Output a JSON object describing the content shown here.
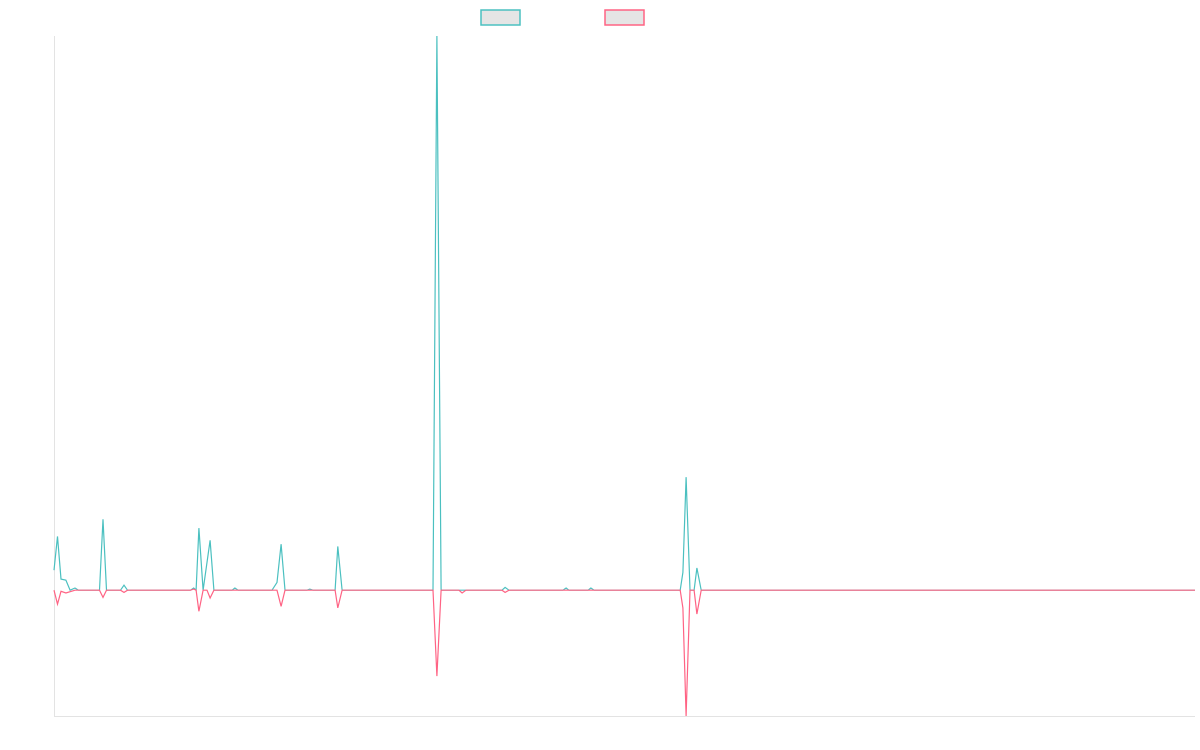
{
  "chart_data": {
    "type": "line",
    "title": "",
    "xlabel": "",
    "ylabel": "",
    "xlim": [
      0,
      326
    ],
    "ylim": [
      -22.7,
      100
    ],
    "grid": false,
    "legend_position": "top-center",
    "series": [
      {
        "name": "",
        "color": "#4bc0c0",
        "points": [
          [
            0,
            3.6
          ],
          [
            1,
            9.7
          ],
          [
            2,
            2
          ],
          [
            3.4,
            1.8
          ],
          [
            4.6,
            0
          ],
          [
            6,
            0.4
          ],
          [
            7,
            0
          ],
          [
            13,
            0
          ],
          [
            14,
            12.8
          ],
          [
            15,
            0
          ],
          [
            19,
            0
          ],
          [
            20,
            0.9
          ],
          [
            21,
            0
          ],
          [
            39,
            0
          ],
          [
            39.9,
            0.4
          ],
          [
            40.6,
            0
          ],
          [
            41.4,
            11.2
          ],
          [
            42.6,
            0
          ],
          [
            44.6,
            9
          ],
          [
            45.7,
            0
          ],
          [
            50.9,
            0
          ],
          [
            51.7,
            0.4
          ],
          [
            52.6,
            0
          ],
          [
            62.3,
            0
          ],
          [
            63.7,
            1.4
          ],
          [
            64.9,
            8.3
          ],
          [
            66,
            0
          ],
          [
            72.3,
            0
          ],
          [
            73.1,
            0.2
          ],
          [
            74,
            0
          ],
          [
            80.3,
            0
          ],
          [
            81.1,
            7.9
          ],
          [
            82.3,
            0
          ],
          [
            108.3,
            0
          ],
          [
            109.4,
            100
          ],
          [
            110.6,
            0
          ],
          [
            128,
            0
          ],
          [
            128.9,
            0.5
          ],
          [
            130,
            0
          ],
          [
            145.4,
            0
          ],
          [
            146.3,
            0.4
          ],
          [
            147.1,
            0
          ],
          [
            152.6,
            0
          ],
          [
            153.4,
            0.4
          ],
          [
            154.3,
            0
          ],
          [
            178.9,
            0
          ],
          [
            179.7,
            3.2
          ],
          [
            180.6,
            20.4
          ],
          [
            181.7,
            0
          ],
          [
            182.9,
            0
          ],
          [
            183.7,
            4
          ],
          [
            184.9,
            0
          ],
          [
            326,
            0
          ]
        ]
      },
      {
        "name": "",
        "color": "#ff6384",
        "points": [
          [
            0,
            0
          ],
          [
            1,
            -2.5
          ],
          [
            2,
            -0.2
          ],
          [
            3.4,
            -0.5
          ],
          [
            6,
            0
          ],
          [
            13,
            0
          ],
          [
            14,
            -1.3
          ],
          [
            15,
            0
          ],
          [
            19,
            0
          ],
          [
            20,
            -0.4
          ],
          [
            21,
            0
          ],
          [
            39,
            0
          ],
          [
            39.9,
            0.2
          ],
          [
            40.6,
            0
          ],
          [
            41.4,
            -3.8
          ],
          [
            42.6,
            0
          ],
          [
            43.7,
            0
          ],
          [
            44.6,
            -1.4
          ],
          [
            45.7,
            0
          ],
          [
            63.7,
            0
          ],
          [
            64.9,
            -2.9
          ],
          [
            66,
            0
          ],
          [
            80.3,
            0
          ],
          [
            81.1,
            -3.2
          ],
          [
            82.3,
            0
          ],
          [
            108.3,
            0
          ],
          [
            109.4,
            -15.5
          ],
          [
            110.6,
            0
          ],
          [
            115.7,
            0
          ],
          [
            116.6,
            -0.5
          ],
          [
            117.7,
            0
          ],
          [
            128,
            0
          ],
          [
            128.9,
            -0.4
          ],
          [
            130,
            0
          ],
          [
            178.9,
            0
          ],
          [
            179.7,
            -3.2
          ],
          [
            180.6,
            -22.7
          ],
          [
            181.7,
            0
          ],
          [
            182.9,
            0
          ],
          [
            183.7,
            -4.3
          ],
          [
            184.9,
            0
          ],
          [
            326,
            0
          ]
        ]
      }
    ]
  }
}
